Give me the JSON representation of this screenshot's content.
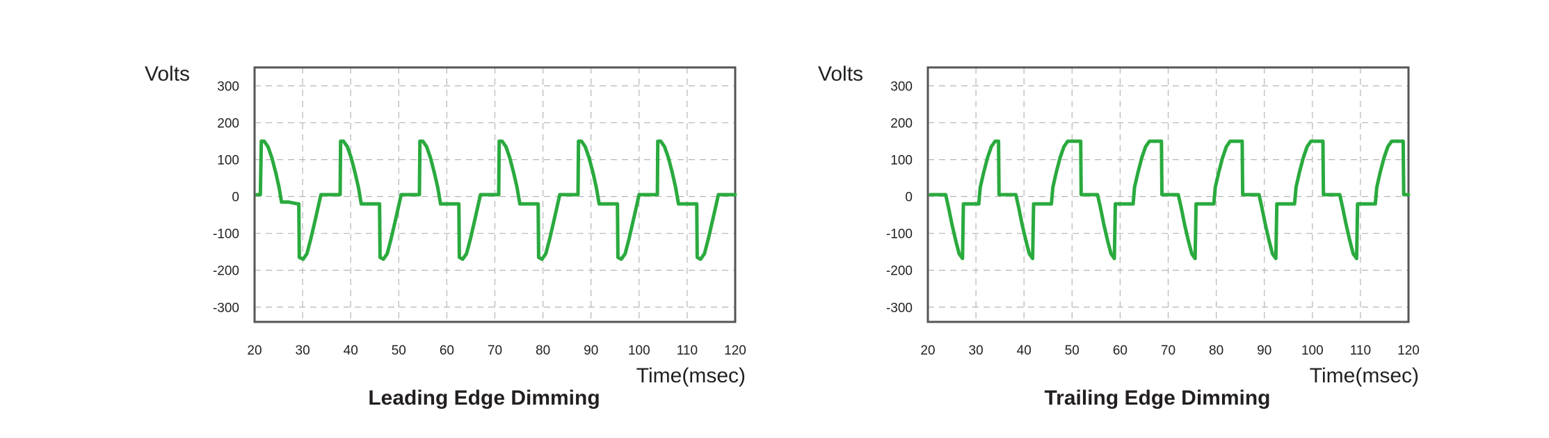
{
  "chart_data": [
    {
      "type": "line",
      "title": "Leading Edge Dimming",
      "xlabel": "Time(msec)",
      "ylabel": "Volts",
      "xlim": [
        20,
        120
      ],
      "ylim": [
        -340,
        350
      ],
      "xticks": [
        "20",
        "30",
        "40",
        "50",
        "60",
        "70",
        "80",
        "90",
        "100",
        "110",
        "120"
      ],
      "yticks": [
        "300",
        "200",
        "100",
        "0",
        "-100",
        "-200",
        "-300"
      ],
      "grid": true,
      "series_color": "#2aaa3e",
      "series": [
        {
          "values": [
            [
              20.5,
              5
            ],
            [
              21.2,
              5
            ],
            [
              21.4,
              150
            ],
            [
              22.0,
              150
            ],
            [
              22.8,
              135
            ],
            [
              23.6,
              105
            ],
            [
              24.4,
              65
            ],
            [
              25.1,
              25
            ],
            [
              25.6,
              -15
            ],
            [
              27.0,
              -15
            ],
            [
              29.0,
              -20
            ],
            [
              29.2,
              -20
            ],
            [
              29.3,
              -165
            ],
            [
              30.1,
              -170
            ],
            [
              30.9,
              -155
            ],
            [
              31.7,
              -115
            ],
            [
              32.5,
              -70
            ],
            [
              33.2,
              -30
            ],
            [
              33.8,
              5
            ],
            [
              37.8,
              5
            ],
            [
              37.9,
              150
            ],
            [
              38.5,
              150
            ],
            [
              39.3,
              135
            ],
            [
              40.1,
              105
            ],
            [
              40.9,
              65
            ],
            [
              41.6,
              25
            ],
            [
              42.2,
              -20
            ],
            [
              46.0,
              -20
            ],
            [
              46.1,
              -165
            ],
            [
              46.8,
              -170
            ],
            [
              47.6,
              -155
            ],
            [
              48.4,
              -115
            ],
            [
              49.2,
              -70
            ],
            [
              49.9,
              -30
            ],
            [
              50.5,
              5
            ],
            [
              54.3,
              5
            ],
            [
              54.4,
              150
            ],
            [
              55.0,
              150
            ],
            [
              55.8,
              135
            ],
            [
              56.6,
              105
            ],
            [
              57.4,
              65
            ],
            [
              58.1,
              25
            ],
            [
              58.7,
              -20
            ],
            [
              62.5,
              -20
            ],
            [
              62.6,
              -165
            ],
            [
              63.3,
              -170
            ],
            [
              64.1,
              -155
            ],
            [
              64.9,
              -115
            ],
            [
              65.7,
              -70
            ],
            [
              66.4,
              -30
            ],
            [
              67.0,
              5
            ],
            [
              70.8,
              5
            ],
            [
              70.9,
              150
            ],
            [
              71.5,
              150
            ],
            [
              72.3,
              135
            ],
            [
              73.1,
              105
            ],
            [
              73.9,
              65
            ],
            [
              74.6,
              25
            ],
            [
              75.2,
              -20
            ],
            [
              79.0,
              -20
            ],
            [
              79.1,
              -165
            ],
            [
              79.8,
              -170
            ],
            [
              80.6,
              -155
            ],
            [
              81.4,
              -115
            ],
            [
              82.2,
              -70
            ],
            [
              82.9,
              -30
            ],
            [
              83.5,
              5
            ],
            [
              87.3,
              5
            ],
            [
              87.4,
              150
            ],
            [
              88.0,
              150
            ],
            [
              88.8,
              135
            ],
            [
              89.6,
              105
            ],
            [
              90.4,
              65
            ],
            [
              91.1,
              25
            ],
            [
              91.7,
              -20
            ],
            [
              95.5,
              -20
            ],
            [
              95.6,
              -165
            ],
            [
              96.3,
              -170
            ],
            [
              97.1,
              -155
            ],
            [
              97.9,
              -115
            ],
            [
              98.7,
              -70
            ],
            [
              99.4,
              -30
            ],
            [
              100.0,
              5
            ],
            [
              103.8,
              5
            ],
            [
              103.9,
              150
            ],
            [
              104.5,
              150
            ],
            [
              105.3,
              135
            ],
            [
              106.1,
              105
            ],
            [
              106.9,
              65
            ],
            [
              107.6,
              25
            ],
            [
              108.2,
              -20
            ],
            [
              112.0,
              -20
            ],
            [
              112.1,
              -165
            ],
            [
              112.8,
              -170
            ],
            [
              113.6,
              -155
            ],
            [
              114.4,
              -115
            ],
            [
              115.2,
              -70
            ],
            [
              115.9,
              -30
            ],
            [
              116.5,
              5
            ],
            [
              120.0,
              5
            ]
          ]
        }
      ]
    },
    {
      "type": "line",
      "title": "Trailing Edge Dimming",
      "xlabel": "Time(msec)",
      "ylabel": "Volts",
      "xlim": [
        20,
        120
      ],
      "ylim": [
        -340,
        350
      ],
      "xticks": [
        "20",
        "30",
        "40",
        "50",
        "60",
        "70",
        "80",
        "90",
        "100",
        "110",
        "120"
      ],
      "yticks": [
        "300",
        "200",
        "100",
        "0",
        "-100",
        "-200",
        "-300"
      ],
      "grid": true,
      "series_color": "#2aaa3e",
      "series": [
        {
          "values": [
            [
              20.5,
              5
            ],
            [
              23.7,
              5
            ],
            [
              24.3,
              -30
            ],
            [
              25.0,
              -75
            ],
            [
              25.8,
              -120
            ],
            [
              26.5,
              -155
            ],
            [
              27.2,
              -168
            ],
            [
              27.4,
              -20
            ],
            [
              29.3,
              -20
            ],
            [
              30.6,
              -20
            ],
            [
              30.9,
              25
            ],
            [
              31.6,
              65
            ],
            [
              32.4,
              105
            ],
            [
              33.2,
              135
            ],
            [
              34.0,
              150
            ],
            [
              34.7,
              150
            ],
            [
              34.8,
              5
            ],
            [
              38.3,
              5
            ],
            [
              38.9,
              -30
            ],
            [
              39.6,
              -75
            ],
            [
              40.4,
              -120
            ],
            [
              41.1,
              -155
            ],
            [
              41.8,
              -168
            ],
            [
              42.0,
              -20
            ],
            [
              45.7,
              -20
            ],
            [
              46.0,
              25
            ],
            [
              46.7,
              65
            ],
            [
              47.5,
              105
            ],
            [
              48.3,
              135
            ],
            [
              49.1,
              150
            ],
            [
              51.8,
              150
            ],
            [
              51.9,
              5
            ],
            [
              55.3,
              5
            ],
            [
              55.9,
              -30
            ],
            [
              56.6,
              -75
            ],
            [
              57.4,
              -120
            ],
            [
              58.1,
              -155
            ],
            [
              58.8,
              -168
            ],
            [
              59.0,
              -20
            ],
            [
              62.7,
              -20
            ],
            [
              63.0,
              25
            ],
            [
              63.7,
              65
            ],
            [
              64.5,
              105
            ],
            [
              65.3,
              135
            ],
            [
              66.1,
              150
            ],
            [
              68.6,
              150
            ],
            [
              68.7,
              5
            ],
            [
              72.1,
              5
            ],
            [
              72.7,
              -30
            ],
            [
              73.4,
              -75
            ],
            [
              74.2,
              -120
            ],
            [
              74.9,
              -155
            ],
            [
              75.6,
              -168
            ],
            [
              75.8,
              -20
            ],
            [
              79.5,
              -20
            ],
            [
              79.8,
              25
            ],
            [
              80.5,
              65
            ],
            [
              81.3,
              105
            ],
            [
              82.1,
              135
            ],
            [
              82.9,
              150
            ],
            [
              85.4,
              150
            ],
            [
              85.5,
              5
            ],
            [
              88.9,
              5
            ],
            [
              89.5,
              -30
            ],
            [
              90.2,
              -75
            ],
            [
              91.0,
              -120
            ],
            [
              91.7,
              -155
            ],
            [
              92.4,
              -168
            ],
            [
              92.6,
              -20
            ],
            [
              96.3,
              -20
            ],
            [
              96.6,
              25
            ],
            [
              97.3,
              65
            ],
            [
              98.1,
              105
            ],
            [
              98.9,
              135
            ],
            [
              99.7,
              150
            ],
            [
              102.2,
              150
            ],
            [
              102.3,
              5
            ],
            [
              105.7,
              5
            ],
            [
              106.3,
              -30
            ],
            [
              107.0,
              -75
            ],
            [
              107.8,
              -120
            ],
            [
              108.5,
              -155
            ],
            [
              109.2,
              -168
            ],
            [
              109.4,
              -20
            ],
            [
              113.1,
              -20
            ],
            [
              113.4,
              25
            ],
            [
              114.1,
              65
            ],
            [
              114.9,
              105
            ],
            [
              115.7,
              135
            ],
            [
              116.5,
              150
            ],
            [
              118.9,
              150
            ],
            [
              119.0,
              5
            ],
            [
              120.0,
              5
            ]
          ]
        }
      ]
    }
  ]
}
